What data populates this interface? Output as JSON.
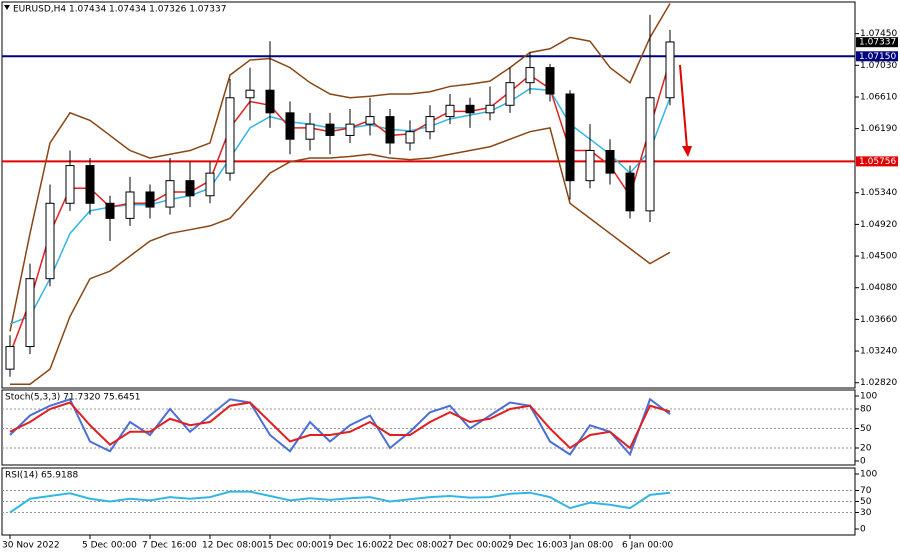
{
  "chart_data": [
    {
      "type": "candlestick",
      "title": "EURUSD,H4  1.07434 1.07434 1.07326 1.07337",
      "categories": [
        "30 Nov 2022",
        null,
        null,
        null,
        "5 Dec 00:00",
        null,
        null,
        "7 Dec 16:00",
        null,
        null,
        "12 Dec 08:00",
        null,
        null,
        "15 Dec 00:00",
        null,
        null,
        "19 Dec 16:00",
        null,
        null,
        "22 Dec 08:00",
        null,
        null,
        "27 Dec 00:00",
        null,
        null,
        "29 Dec 16:00",
        null,
        null,
        "3 Jan 08:00",
        null,
        null,
        "6 Jan 00:00",
        null,
        null
      ],
      "open": [
        1.03,
        1.033,
        1.042,
        1.052,
        1.057,
        1.052,
        1.05,
        1.0535,
        1.0515,
        1.055,
        1.053,
        1.056,
        1.066,
        1.067,
        1.064,
        1.0605,
        1.0625,
        1.061,
        1.0625,
        1.0635,
        1.06,
        1.0615,
        1.0635,
        1.065,
        1.064,
        1.065,
        1.068,
        1.07,
        1.0665,
        1.055,
        1.059,
        1.056,
        1.051,
        1.066
      ],
      "high": [
        1.0345,
        1.044,
        1.0545,
        1.059,
        1.058,
        1.053,
        1.0555,
        1.0545,
        1.058,
        1.0575,
        1.0575,
        1.0685,
        1.07,
        1.0735,
        1.0655,
        1.064,
        1.064,
        1.0645,
        1.066,
        1.0645,
        1.063,
        1.065,
        1.0665,
        1.066,
        1.0675,
        1.07,
        1.072,
        1.0705,
        1.067,
        1.0625,
        1.0605,
        1.057,
        1.077,
        1.075
      ],
      "low": [
        1.029,
        1.032,
        1.041,
        1.051,
        1.0505,
        1.047,
        1.049,
        1.05,
        1.0505,
        1.0515,
        1.052,
        1.055,
        1.063,
        1.062,
        1.0585,
        1.059,
        1.0585,
        1.06,
        1.061,
        1.0585,
        1.059,
        1.0605,
        1.0625,
        1.062,
        1.063,
        1.064,
        1.0665,
        1.0655,
        1.0525,
        1.054,
        1.0545,
        1.05,
        1.0495,
        1.065
      ],
      "close": [
        1.033,
        1.042,
        1.052,
        1.057,
        1.052,
        1.05,
        1.0535,
        1.0515,
        1.055,
        1.053,
        1.056,
        1.066,
        1.067,
        1.064,
        1.0605,
        1.0625,
        1.061,
        1.0625,
        1.0635,
        1.06,
        1.0615,
        1.0635,
        1.065,
        1.064,
        1.065,
        1.068,
        1.07,
        1.0665,
        1.055,
        1.059,
        1.056,
        1.051,
        1.066,
        1.0734
      ],
      "up_color": "#ffffff",
      "down_color": "#000000",
      "series": [
        {
          "color": "#8b4513",
          "values": [
            1.035,
            1.048,
            1.06,
            1.064,
            1.063,
            1.061,
            1.059,
            1.058,
            1.0585,
            1.059,
            1.06,
            1.069,
            1.071,
            1.0712,
            1.07,
            1.068,
            1.0665,
            1.066,
            1.0662,
            1.0665,
            1.0665,
            1.0668,
            1.0675,
            1.0678,
            1.0682,
            1.07,
            1.072,
            1.0725,
            1.074,
            1.0735,
            1.07,
            1.068,
            1.074,
            1.0785
          ]
        },
        {
          "color": "#8b4513",
          "values": [
            1.028,
            1.028,
            1.03,
            1.037,
            1.042,
            1.043,
            1.045,
            1.047,
            1.048,
            1.0485,
            1.049,
            1.05,
            1.053,
            1.056,
            1.0575,
            1.058,
            1.058,
            1.0582,
            1.0585,
            1.058,
            1.0578,
            1.058,
            1.0585,
            1.059,
            1.0595,
            1.0605,
            1.0615,
            1.062,
            1.052,
            1.05,
            1.048,
            1.046,
            1.044,
            1.0455
          ]
        },
        {
          "color": "#33b5e5",
          "values": [
            1.036,
            1.037,
            1.042,
            1.048,
            1.051,
            1.0515,
            1.0518,
            1.0518,
            1.0525,
            1.053,
            1.054,
            1.058,
            1.062,
            1.0635,
            1.0628,
            1.0625,
            1.062,
            1.062,
            1.0624,
            1.0618,
            1.0616,
            1.0622,
            1.0632,
            1.0637,
            1.0642,
            1.0655,
            1.0672,
            1.067,
            1.0625,
            1.0605,
            1.0585,
            1.056,
            1.059,
            1.066
          ]
        },
        {
          "color": "#e02020",
          "values": [
            1.032,
            1.039,
            1.048,
            1.054,
            1.054,
            1.0515,
            1.052,
            1.052,
            1.0535,
            1.0535,
            1.055,
            1.062,
            1.0655,
            1.065,
            1.062,
            1.062,
            1.0615,
            1.062,
            1.063,
            1.061,
            1.0612,
            1.0628,
            1.0642,
            1.0642,
            1.0647,
            1.0668,
            1.069,
            1.0672,
            1.059,
            1.059,
            1.057,
            1.053,
            1.062,
            1.071
          ]
        }
      ],
      "ylim": [
        1.0275,
        1.0787
      ],
      "yticks": [
        {
          "value": 1.0745,
          "label": "1.07450"
        },
        {
          "value": 1.0703,
          "label": "1.07030"
        },
        {
          "value": 1.0661,
          "label": "1.06610"
        },
        {
          "value": 1.0619,
          "label": "1.06190"
        },
        {
          "value": 1.0534,
          "label": "1.05340"
        },
        {
          "value": 1.0492,
          "label": "1.04920"
        },
        {
          "value": 1.045,
          "label": "1.04500"
        },
        {
          "value": 1.0408,
          "label": "1.04080"
        },
        {
          "value": 1.0366,
          "label": "1.03660"
        },
        {
          "value": 1.0324,
          "label": "1.03240"
        },
        {
          "value": 1.0282,
          "label": "1.02820"
        }
      ],
      "hlines": [
        {
          "value": 1.0715,
          "label": "1.07150",
          "color": "#000080"
        },
        {
          "value": 1.05756,
          "label": "1.05756",
          "color": "#e00000"
        }
      ],
      "last_price": {
        "value": 1.07337,
        "label": "1.07337"
      }
    },
    {
      "type": "line",
      "title": "Stoch(5,3,3) 71.7320 75.6451",
      "series": [
        {
          "color": "#4a6fd8",
          "values": [
            40,
            70,
            85,
            95,
            30,
            15,
            60,
            40,
            80,
            45,
            70,
            95,
            90,
            40,
            15,
            60,
            30,
            55,
            70,
            20,
            45,
            75,
            85,
            50,
            70,
            90,
            85,
            30,
            10,
            55,
            45,
            10,
            95,
            72
          ]
        },
        {
          "color": "#e02020",
          "values": [
            45,
            60,
            80,
            90,
            55,
            25,
            45,
            45,
            65,
            55,
            60,
            85,
            90,
            60,
            30,
            40,
            40,
            45,
            60,
            40,
            40,
            60,
            75,
            60,
            65,
            80,
            85,
            50,
            20,
            40,
            45,
            20,
            85,
            76
          ]
        }
      ],
      "ylim": [
        0,
        100
      ],
      "yticks": [
        0,
        20,
        50,
        80,
        100
      ]
    },
    {
      "type": "line",
      "title": "RSI(14) 65.9188",
      "series": [
        {
          "color": "#33b5e5",
          "values": [
            30,
            55,
            60,
            65,
            55,
            50,
            55,
            52,
            58,
            55,
            58,
            68,
            68,
            60,
            52,
            56,
            53,
            56,
            58,
            50,
            54,
            58,
            60,
            57,
            58,
            64,
            66,
            58,
            38,
            48,
            44,
            38,
            62,
            66
          ]
        }
      ],
      "ylim": [
        0,
        100
      ],
      "yticks": [
        0,
        30,
        50,
        70,
        100
      ]
    }
  ]
}
